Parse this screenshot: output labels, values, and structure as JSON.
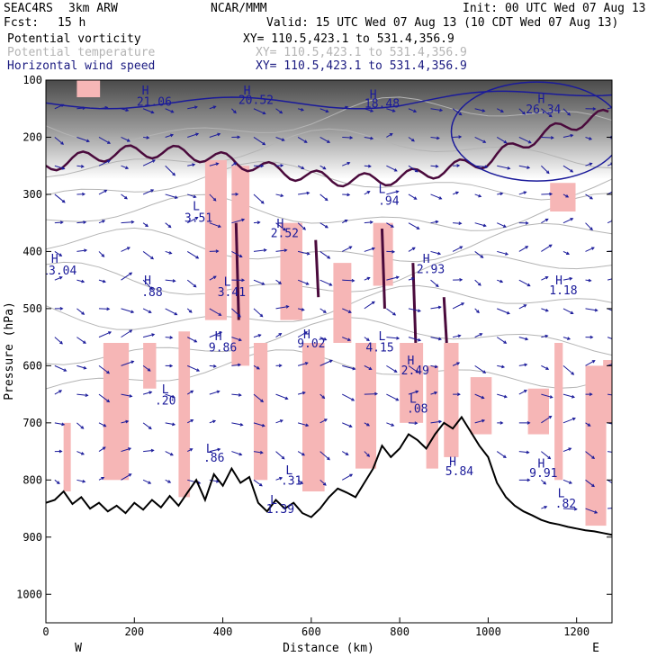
{
  "header": {
    "project": "SEAC4RS",
    "model": "3km ARW",
    "org": "NCAR/MMM",
    "init": "Init: 00 UTC Wed 07 Aug 13",
    "fcst_label": "Fcst:",
    "fcst_value": "15 h",
    "valid": "Valid: 15 UTC Wed 07 Aug 13 (10 CDT Wed 07 Aug 13)"
  },
  "legend": [
    {
      "name": "Potential vorticity",
      "xy": "XY= 110.5,423.1 to 531.4,356.9",
      "color": "#000000"
    },
    {
      "name": "Potential temperature",
      "xy": "XY= 110.5,423.1 to 531.4,356.9",
      "color": "#b4b4b4"
    },
    {
      "name": "Horizontal wind speed",
      "xy": "XY= 110.5,423.1 to 531.4,356.9",
      "color": "#1a1a80"
    }
  ],
  "chart_data": {
    "type": "cross-section",
    "xlabel": "Distance (km)",
    "ylabel": "Pressure (hPa)",
    "xlim": [
      0,
      1280
    ],
    "ylim": [
      1050,
      100
    ],
    "x_ticks": [
      0,
      200,
      400,
      600,
      800,
      1000,
      1200
    ],
    "y_ticks": [
      100,
      200,
      300,
      400,
      500,
      600,
      700,
      800,
      900,
      1000
    ],
    "x_end_labels": {
      "left": "W",
      "right": "E"
    },
    "colors": {
      "terrain": "#000000",
      "pv_shade": "#f6b6b6",
      "pv_contour": "#4a0a3c",
      "wind": "#1a1a9a",
      "theta": "#b4b4b4"
    },
    "terrain": [
      [
        0,
        840
      ],
      [
        20,
        835
      ],
      [
        40,
        820
      ],
      [
        60,
        842
      ],
      [
        80,
        830
      ],
      [
        100,
        850
      ],
      [
        120,
        840
      ],
      [
        140,
        855
      ],
      [
        160,
        845
      ],
      [
        180,
        858
      ],
      [
        200,
        840
      ],
      [
        220,
        852
      ],
      [
        240,
        835
      ],
      [
        260,
        848
      ],
      [
        280,
        828
      ],
      [
        300,
        845
      ],
      [
        320,
        822
      ],
      [
        340,
        800
      ],
      [
        360,
        835
      ],
      [
        380,
        790
      ],
      [
        400,
        810
      ],
      [
        420,
        780
      ],
      [
        440,
        805
      ],
      [
        460,
        795
      ],
      [
        480,
        840
      ],
      [
        500,
        855
      ],
      [
        520,
        835
      ],
      [
        540,
        850
      ],
      [
        560,
        840
      ],
      [
        580,
        858
      ],
      [
        600,
        865
      ],
      [
        620,
        850
      ],
      [
        640,
        830
      ],
      [
        660,
        815
      ],
      [
        680,
        822
      ],
      [
        700,
        830
      ],
      [
        720,
        805
      ],
      [
        740,
        780
      ],
      [
        760,
        740
      ],
      [
        780,
        760
      ],
      [
        800,
        745
      ],
      [
        820,
        720
      ],
      [
        840,
        730
      ],
      [
        860,
        745
      ],
      [
        880,
        720
      ],
      [
        900,
        700
      ],
      [
        920,
        710
      ],
      [
        940,
        690
      ],
      [
        960,
        715
      ],
      [
        980,
        740
      ],
      [
        1000,
        760
      ],
      [
        1020,
        805
      ],
      [
        1040,
        830
      ],
      [
        1060,
        845
      ],
      [
        1080,
        855
      ],
      [
        1100,
        862
      ],
      [
        1120,
        870
      ],
      [
        1140,
        875
      ],
      [
        1160,
        878
      ],
      [
        1180,
        882
      ],
      [
        1200,
        885
      ],
      [
        1220,
        888
      ],
      [
        1240,
        890
      ],
      [
        1260,
        893
      ],
      [
        1280,
        896
      ]
    ],
    "annotations": [
      {
        "text": "H",
        "x": 225,
        "p": 125
      },
      {
        "text": "21.06",
        "x": 245,
        "p": 145
      },
      {
        "text": "H",
        "x": 455,
        "p": 125
      },
      {
        "text": "20.52",
        "x": 475,
        "p": 142
      },
      {
        "text": "H",
        "x": 740,
        "p": 132
      },
      {
        "text": "18.48",
        "x": 760,
        "p": 148
      },
      {
        "text": "H",
        "x": 1120,
        "p": 140
      },
      {
        "text": "26.34",
        "x": 1125,
        "p": 158
      },
      {
        "text": "L",
        "x": 340,
        "p": 328
      },
      {
        "text": "3.51",
        "x": 345,
        "p": 348
      },
      {
        "text": "H",
        "x": 530,
        "p": 358
      },
      {
        "text": "2.52",
        "x": 540,
        "p": 375
      },
      {
        "text": "L",
        "x": 760,
        "p": 298
      },
      {
        "text": ".94",
        "x": 775,
        "p": 318
      },
      {
        "text": "H",
        "x": 20,
        "p": 420
      },
      {
        "text": "13.04",
        "x": 30,
        "p": 440
      },
      {
        "text": "H",
        "x": 230,
        "p": 458
      },
      {
        "text": ".88",
        "x": 240,
        "p": 478
      },
      {
        "text": "L",
        "x": 410,
        "p": 460
      },
      {
        "text": "3.41",
        "x": 420,
        "p": 478
      },
      {
        "text": "H",
        "x": 860,
        "p": 420
      },
      {
        "text": "2.93",
        "x": 870,
        "p": 438
      },
      {
        "text": "H",
        "x": 1160,
        "p": 458
      },
      {
        "text": "1.18",
        "x": 1170,
        "p": 475
      },
      {
        "text": "H",
        "x": 390,
        "p": 555
      },
      {
        "text": "9.86",
        "x": 400,
        "p": 575
      },
      {
        "text": "H",
        "x": 590,
        "p": 552
      },
      {
        "text": "9.02",
        "x": 600,
        "p": 568
      },
      {
        "text": "L",
        "x": 760,
        "p": 555
      },
      {
        "text": "4.15",
        "x": 755,
        "p": 575
      },
      {
        "text": "H",
        "x": 825,
        "p": 598
      },
      {
        "text": "2.49",
        "x": 835,
        "p": 615
      },
      {
        "text": "L",
        "x": 270,
        "p": 648
      },
      {
        "text": ".20",
        "x": 270,
        "p": 668
      },
      {
        "text": "L",
        "x": 830,
        "p": 665
      },
      {
        "text": ".08",
        "x": 840,
        "p": 682
      },
      {
        "text": "L",
        "x": 370,
        "p": 752
      },
      {
        "text": ".86",
        "x": 380,
        "p": 768
      },
      {
        "text": "L",
        "x": 550,
        "p": 790
      },
      {
        "text": ".31",
        "x": 555,
        "p": 808
      },
      {
        "text": "H",
        "x": 920,
        "p": 775
      },
      {
        "text": "5.84",
        "x": 935,
        "p": 792
      },
      {
        "text": "H",
        "x": 1120,
        "p": 778
      },
      {
        "text": "9.91",
        "x": 1125,
        "p": 795
      },
      {
        "text": "L",
        "x": 1165,
        "p": 830
      },
      {
        "text": ".82",
        "x": 1175,
        "p": 848
      },
      {
        "text": "L",
        "x": 515,
        "p": 842
      },
      {
        "text": "1.39",
        "x": 530,
        "p": 858
      }
    ]
  }
}
